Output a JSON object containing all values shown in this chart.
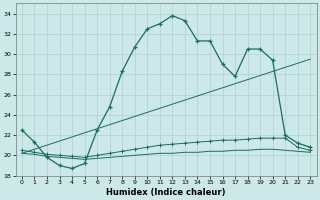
{
  "xlabel": "Humidex (Indice chaleur)",
  "bg_color": "#cce8e8",
  "grid_color": "#b0d0d0",
  "line_color": "#1a6e60",
  "xlim": [
    -0.5,
    23.5
  ],
  "ylim": [
    18,
    35
  ],
  "yticks": [
    18,
    20,
    22,
    24,
    26,
    28,
    30,
    32,
    34
  ],
  "xticks": [
    0,
    1,
    2,
    3,
    4,
    5,
    6,
    7,
    8,
    9,
    10,
    11,
    12,
    13,
    14,
    15,
    16,
    17,
    18,
    19,
    20,
    21,
    22,
    23
  ],
  "line1_x": [
    0,
    1,
    2,
    3,
    4,
    5,
    6,
    7,
    8,
    9,
    10,
    11,
    12,
    13,
    14,
    15,
    16,
    17,
    18,
    19,
    20,
    21,
    22,
    23
  ],
  "line1_y": [
    22.5,
    21.3,
    19.8,
    19.0,
    18.7,
    19.2,
    22.5,
    24.8,
    28.3,
    30.7,
    32.5,
    33.0,
    33.8,
    33.3,
    31.3,
    31.3,
    29.0,
    27.8,
    30.5,
    30.5,
    29.4,
    22.0,
    21.2,
    20.8
  ],
  "line2_x": [
    0,
    1,
    2,
    3,
    4,
    5,
    6,
    7,
    8,
    9,
    10,
    11,
    12,
    13,
    14,
    15,
    16,
    17,
    18,
    19,
    20,
    21,
    22,
    23
  ],
  "line2_y": [
    20.5,
    20.3,
    20.1,
    20.0,
    19.9,
    19.8,
    20.0,
    20.2,
    20.4,
    20.6,
    20.8,
    21.0,
    21.1,
    21.2,
    21.3,
    21.4,
    21.5,
    21.5,
    21.6,
    21.7,
    21.7,
    21.7,
    20.8,
    20.5
  ],
  "line3_x": [
    0,
    23
  ],
  "line3_y": [
    20.2,
    29.5
  ],
  "line4_x": [
    0,
    1,
    2,
    3,
    4,
    5,
    6,
    7,
    8,
    9,
    10,
    11,
    12,
    13,
    14,
    15,
    16,
    17,
    18,
    19,
    20,
    21,
    22,
    23
  ],
  "line4_y": [
    20.2,
    20.1,
    19.9,
    19.8,
    19.7,
    19.6,
    19.7,
    19.8,
    19.9,
    20.0,
    20.1,
    20.2,
    20.2,
    20.3,
    20.3,
    20.4,
    20.4,
    20.5,
    20.5,
    20.6,
    20.6,
    20.5,
    20.4,
    20.3
  ]
}
